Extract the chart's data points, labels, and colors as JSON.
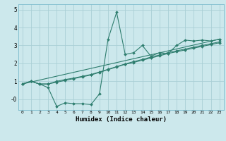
{
  "xlabel": "Humidex (Indice chaleur)",
  "ylabel": "",
  "background_color": "#cce8ec",
  "line_color": "#2e7d6e",
  "grid_color": "#aacfd6",
  "xlim": [
    -0.5,
    23.5
  ],
  "ylim": [
    -0.6,
    5.3
  ],
  "xticks": [
    0,
    1,
    2,
    3,
    4,
    5,
    6,
    7,
    8,
    9,
    10,
    11,
    12,
    13,
    14,
    15,
    16,
    17,
    18,
    19,
    20,
    21,
    22,
    23
  ],
  "yticks": [
    0,
    1,
    2,
    3,
    4,
    5
  ],
  "ytick_labels": [
    "-0",
    "1",
    "2",
    "3",
    "4",
    "5"
  ],
  "line1_x": [
    0,
    1,
    2,
    3,
    4,
    5,
    6,
    7,
    8,
    9,
    10,
    11,
    12,
    13,
    14,
    15,
    16,
    17,
    18,
    19,
    20,
    21,
    22,
    23
  ],
  "line1_y": [
    0.85,
    1.0,
    0.85,
    0.65,
    -0.4,
    -0.2,
    -0.25,
    -0.25,
    -0.3,
    0.3,
    3.35,
    4.85,
    2.5,
    2.6,
    3.0,
    2.4,
    2.6,
    2.55,
    3.0,
    3.3,
    3.25,
    3.3,
    3.25,
    3.35
  ],
  "line2_x": [
    0,
    1,
    2,
    3,
    4,
    5,
    6,
    7,
    8,
    9,
    10,
    11,
    12,
    13,
    14,
    15,
    16,
    17,
    18,
    19,
    20,
    21,
    22,
    23
  ],
  "line2_y": [
    0.85,
    1.0,
    0.85,
    0.85,
    0.95,
    1.05,
    1.15,
    1.25,
    1.35,
    1.5,
    1.65,
    1.8,
    1.95,
    2.05,
    2.18,
    2.3,
    2.42,
    2.55,
    2.65,
    2.75,
    2.85,
    2.95,
    3.05,
    3.15
  ],
  "line3_x": [
    0,
    1,
    2,
    3,
    4,
    5,
    6,
    7,
    8,
    9,
    10,
    11,
    12,
    13,
    14,
    15,
    16,
    17,
    18,
    19,
    20,
    21,
    22,
    23
  ],
  "line3_y": [
    0.85,
    1.0,
    0.85,
    0.85,
    1.0,
    1.1,
    1.18,
    1.28,
    1.38,
    1.52,
    1.67,
    1.82,
    1.97,
    2.1,
    2.22,
    2.35,
    2.47,
    2.6,
    2.7,
    2.8,
    2.9,
    3.0,
    3.1,
    3.2
  ],
  "line4_x": [
    0,
    23
  ],
  "line4_y": [
    0.85,
    3.35
  ],
  "marker": "D",
  "markersize": 2.0,
  "linewidth": 0.8
}
